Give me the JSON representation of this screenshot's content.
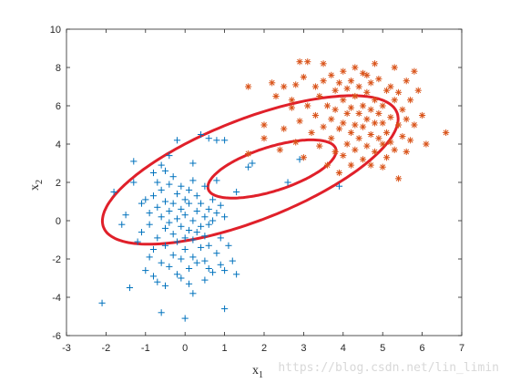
{
  "chart_data": {
    "type": "scatter",
    "title": "",
    "xlabel": "x",
    "xlabel_sub": "1",
    "ylabel": "x",
    "ylabel_sub": "2",
    "xlim": [
      -3,
      7
    ],
    "ylim": [
      -6,
      10
    ],
    "xticks": [
      -3,
      -2,
      -1,
      0,
      1,
      2,
      3,
      4,
      5,
      6,
      7
    ],
    "yticks": [
      -6,
      -4,
      -2,
      0,
      2,
      4,
      6,
      8,
      10
    ],
    "grid": false,
    "series": [
      {
        "marker": "+",
        "color": "#0072BD",
        "points": [
          [
            -2.1,
            -4.3
          ],
          [
            -1.8,
            1.5
          ],
          [
            -1.6,
            -0.2
          ],
          [
            -1.5,
            0.3
          ],
          [
            -1.4,
            -3.5
          ],
          [
            -1.3,
            2.0
          ],
          [
            -1.3,
            3.1
          ],
          [
            -1.2,
            -1.1
          ],
          [
            -1.1,
            0.9
          ],
          [
            -1.1,
            -0.6
          ],
          [
            -1.0,
            -2.6
          ],
          [
            -1.0,
            1.1
          ],
          [
            -0.9,
            0.4
          ],
          [
            -0.9,
            -0.2
          ],
          [
            -0.9,
            -1.9
          ],
          [
            -0.8,
            2.5
          ],
          [
            -0.8,
            1.3
          ],
          [
            -0.8,
            -1.5
          ],
          [
            -0.8,
            -2.9
          ],
          [
            -0.7,
            0.7
          ],
          [
            -0.7,
            -0.9
          ],
          [
            -0.7,
            2.0
          ],
          [
            -0.7,
            -3.2
          ],
          [
            -0.6,
            0.2
          ],
          [
            -0.6,
            1.6
          ],
          [
            -0.6,
            -2.2
          ],
          [
            -0.6,
            2.9
          ],
          [
            -0.6,
            -4.8
          ],
          [
            -0.5,
            -0.4
          ],
          [
            -0.5,
            1.0
          ],
          [
            -0.5,
            -1.3
          ],
          [
            -0.5,
            2.6
          ],
          [
            -0.5,
            -3.4
          ],
          [
            -0.4,
            -0.1
          ],
          [
            -0.4,
            0.5
          ],
          [
            -0.4,
            1.9
          ],
          [
            -0.4,
            -2.4
          ],
          [
            -0.4,
            3.4
          ],
          [
            -0.3,
            0.9
          ],
          [
            -0.3,
            -0.7
          ],
          [
            -0.3,
            -1.8
          ],
          [
            -0.3,
            2.3
          ],
          [
            -0.2,
            0.1
          ],
          [
            -0.2,
            -1.1
          ],
          [
            -0.2,
            1.4
          ],
          [
            -0.2,
            -2.8
          ],
          [
            -0.2,
            4.2
          ],
          [
            -0.1,
            0.6
          ],
          [
            -0.1,
            -0.3
          ],
          [
            -0.1,
            -2.0
          ],
          [
            -0.1,
            1.8
          ],
          [
            -0.1,
            -3.0
          ],
          [
            0.0,
            0.3
          ],
          [
            0.0,
            -0.9
          ],
          [
            0.0,
            -1.5
          ],
          [
            0.0,
            1.1
          ],
          [
            0.0,
            -5.1
          ],
          [
            0.1,
            -0.5
          ],
          [
            0.1,
            0.9
          ],
          [
            0.1,
            1.6
          ],
          [
            0.1,
            -2.5
          ],
          [
            0.1,
            -3.3
          ],
          [
            0.2,
            0.0
          ],
          [
            0.2,
            -1.0
          ],
          [
            0.2,
            2.1
          ],
          [
            0.2,
            -1.9
          ],
          [
            0.2,
            3.0
          ],
          [
            0.2,
            -3.8
          ],
          [
            0.3,
            0.5
          ],
          [
            0.3,
            -0.6
          ],
          [
            0.3,
            1.3
          ],
          [
            0.3,
            -2.2
          ],
          [
            0.4,
            -0.3
          ],
          [
            0.4,
            0.9
          ],
          [
            0.4,
            4.5
          ],
          [
            0.4,
            -1.4
          ],
          [
            0.5,
            0.2
          ],
          [
            0.5,
            -0.8
          ],
          [
            0.5,
            1.8
          ],
          [
            0.5,
            -2.1
          ],
          [
            0.5,
            -3.1
          ],
          [
            0.6,
            0.6
          ],
          [
            0.6,
            -0.2
          ],
          [
            0.6,
            4.3
          ],
          [
            0.6,
            -1.3
          ],
          [
            0.6,
            -2.5
          ],
          [
            0.7,
            0.0
          ],
          [
            0.7,
            1.1
          ],
          [
            0.7,
            -2.7
          ],
          [
            0.8,
            0.4
          ],
          [
            0.8,
            -1.7
          ],
          [
            0.8,
            2.1
          ],
          [
            0.8,
            4.2
          ],
          [
            0.9,
            -0.9
          ],
          [
            0.9,
            0.8
          ],
          [
            0.9,
            -2.3
          ],
          [
            1.0,
            -4.6
          ],
          [
            1.0,
            0.2
          ],
          [
            1.0,
            4.2
          ],
          [
            1.0,
            -2.6
          ],
          [
            1.1,
            -1.3
          ],
          [
            1.2,
            -2.1
          ],
          [
            1.3,
            1.5
          ],
          [
            1.3,
            -2.8
          ],
          [
            1.6,
            2.8
          ],
          [
            1.7,
            3.0
          ],
          [
            2.6,
            2.0
          ],
          [
            2.9,
            3.2
          ],
          [
            3.9,
            1.8
          ]
        ]
      },
      {
        "marker": "*",
        "color": "#D95319",
        "points": [
          [
            1.6,
            7.0
          ],
          [
            1.6,
            3.5
          ],
          [
            2.0,
            4.3
          ],
          [
            2.0,
            5.0
          ],
          [
            2.2,
            7.2
          ],
          [
            2.3,
            6.5
          ],
          [
            2.4,
            3.7
          ],
          [
            2.5,
            7.0
          ],
          [
            2.5,
            4.8
          ],
          [
            2.7,
            5.9
          ],
          [
            2.7,
            6.3
          ],
          [
            2.8,
            7.1
          ],
          [
            2.8,
            4.1
          ],
          [
            2.9,
            8.3
          ],
          [
            2.9,
            5.2
          ],
          [
            3.0,
            7.5
          ],
          [
            3.0,
            3.3
          ],
          [
            3.1,
            8.3
          ],
          [
            3.1,
            6.0
          ],
          [
            3.2,
            4.6
          ],
          [
            3.3,
            7.0
          ],
          [
            3.3,
            5.5
          ],
          [
            3.4,
            3.9
          ],
          [
            3.4,
            6.5
          ],
          [
            3.5,
            8.2
          ],
          [
            3.5,
            4.9
          ],
          [
            3.5,
            7.3
          ],
          [
            3.6,
            6.0
          ],
          [
            3.6,
            2.9
          ],
          [
            3.7,
            5.3
          ],
          [
            3.7,
            7.6
          ],
          [
            3.7,
            4.3
          ],
          [
            3.8,
            6.8
          ],
          [
            3.8,
            3.6
          ],
          [
            3.8,
            5.8
          ],
          [
            3.9,
            7.2
          ],
          [
            3.9,
            4.8
          ],
          [
            3.9,
            2.5
          ],
          [
            4.0,
            6.3
          ],
          [
            4.0,
            5.1
          ],
          [
            4.0,
            3.4
          ],
          [
            4.0,
            7.8
          ],
          [
            4.1,
            4.0
          ],
          [
            4.1,
            5.6
          ],
          [
            4.1,
            6.9
          ],
          [
            4.2,
            2.9
          ],
          [
            4.2,
            4.6
          ],
          [
            4.2,
            7.3
          ],
          [
            4.2,
            5.9
          ],
          [
            4.3,
            3.7
          ],
          [
            4.3,
            6.5
          ],
          [
            4.3,
            5.0
          ],
          [
            4.3,
            8.0
          ],
          [
            4.4,
            4.3
          ],
          [
            4.4,
            5.6
          ],
          [
            4.4,
            7.0
          ],
          [
            4.5,
            3.2
          ],
          [
            4.5,
            6.0
          ],
          [
            4.5,
            4.9
          ],
          [
            4.5,
            7.7
          ],
          [
            4.6,
            5.3
          ],
          [
            4.6,
            3.9
          ],
          [
            4.6,
            6.7
          ],
          [
            4.7,
            4.5
          ],
          [
            4.7,
            5.8
          ],
          [
            4.7,
            7.2
          ],
          [
            4.7,
            2.9
          ],
          [
            4.8,
            5.1
          ],
          [
            4.8,
            6.3
          ],
          [
            4.8,
            3.6
          ],
          [
            4.8,
            8.2
          ],
          [
            4.9,
            4.3
          ],
          [
            4.9,
            5.6
          ],
          [
            4.9,
            7.4
          ],
          [
            5.0,
            4.0
          ],
          [
            5.0,
            6.0
          ],
          [
            5.0,
            5.1
          ],
          [
            5.0,
            2.8
          ],
          [
            5.1,
            6.8
          ],
          [
            5.1,
            4.6
          ],
          [
            5.1,
            3.3
          ],
          [
            5.2,
            5.4
          ],
          [
            5.2,
            7.0
          ],
          [
            5.2,
            4.1
          ],
          [
            5.3,
            6.3
          ],
          [
            5.3,
            3.7
          ],
          [
            5.3,
            8.0
          ],
          [
            5.4,
            5.0
          ],
          [
            5.4,
            2.2
          ],
          [
            5.4,
            6.7
          ],
          [
            5.5,
            4.4
          ],
          [
            5.5,
            5.8
          ],
          [
            5.6,
            3.6
          ],
          [
            5.6,
            7.3
          ],
          [
            5.6,
            5.3
          ],
          [
            5.7,
            6.3
          ],
          [
            5.7,
            4.2
          ],
          [
            5.8,
            7.8
          ],
          [
            5.8,
            5.0
          ],
          [
            5.9,
            6.8
          ],
          [
            6.0,
            5.5
          ],
          [
            6.1,
            4.0
          ],
          [
            6.6,
            4.6
          ],
          [
            4.6,
            7.6
          ]
        ]
      }
    ],
    "ellipses": [
      {
        "cx": 1.65,
        "cy": 2.65,
        "rx": 4.95,
        "ry": 2.13,
        "angle_deg": 46.5,
        "color": "#E0202A"
      },
      {
        "cx": 2.2,
        "cy": 2.7,
        "rx": 2.0,
        "ry": 0.97,
        "angle_deg": 42,
        "color": "#E0202A"
      }
    ]
  },
  "watermark": "https://blog.csdn.net/lin_limin"
}
